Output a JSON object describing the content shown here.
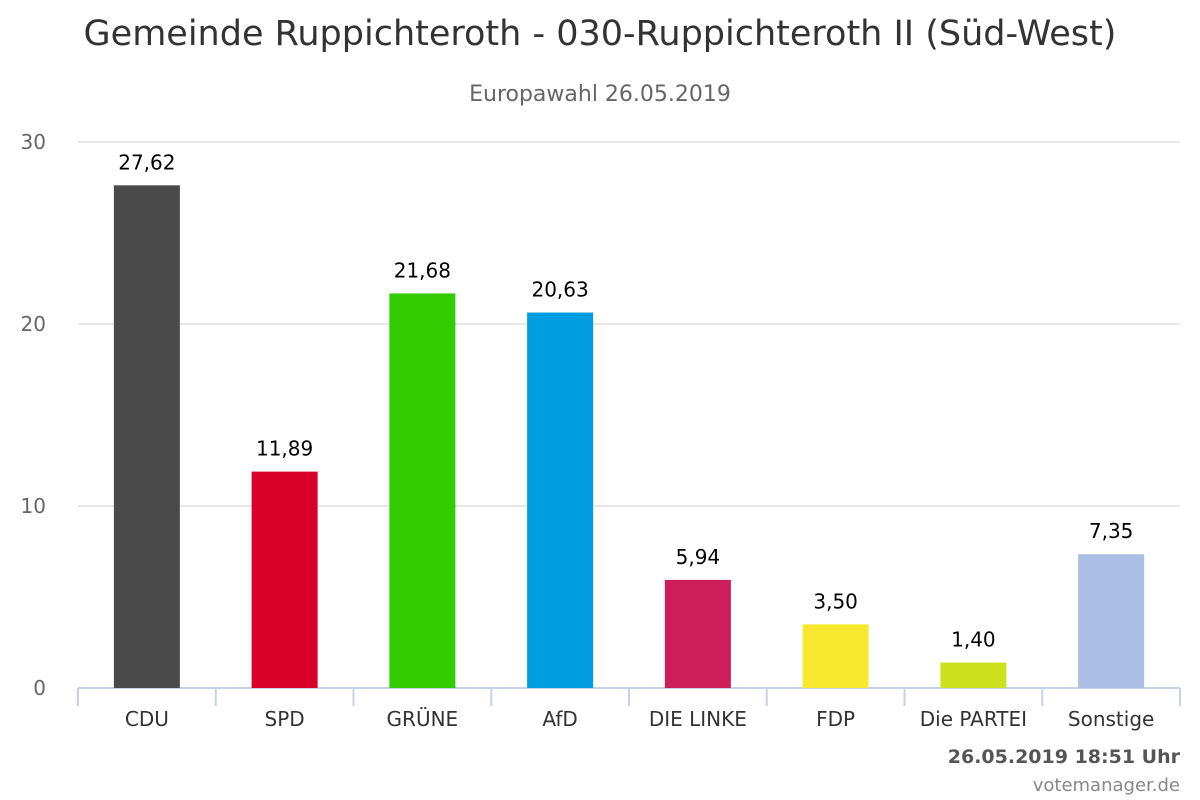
{
  "chart_data": {
    "type": "bar",
    "title": "Gemeinde Ruppichteroth - 030-Ruppichteroth II (Süd-West)",
    "subtitle": "Europawahl 26.05.2019",
    "categories": [
      "CDU",
      "SPD",
      "GRÜNE",
      "AfD",
      "DIE LINKE",
      "FDP",
      "Die PARTEI",
      "Sonstige"
    ],
    "values": [
      27.62,
      11.89,
      21.68,
      20.63,
      5.94,
      3.5,
      1.4,
      7.35
    ],
    "value_labels": [
      "27,62",
      "11,89",
      "21,68",
      "20,63",
      "5,94",
      "3,50",
      "1,40",
      "7,35"
    ],
    "colors": [
      "#4a4a4a",
      "#d9002a",
      "#33cc00",
      "#009ee0",
      "#cc1f5a",
      "#f7e930",
      "#cde21f",
      "#aabfe3"
    ],
    "ylim": [
      0,
      30
    ],
    "yticks": [
      0,
      10,
      20,
      30
    ],
    "grid": true,
    "legend": "none"
  },
  "footer": {
    "timestamp": "26.05.2019 18:51 Uhr",
    "credit": "votemanager.de"
  }
}
